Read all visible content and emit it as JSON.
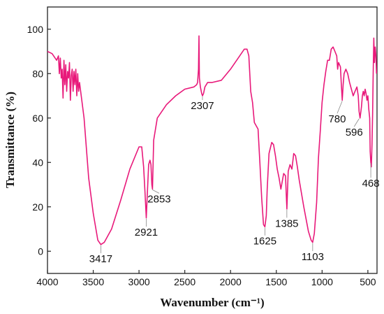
{
  "chart_data": {
    "type": "line",
    "title": "",
    "xlabel": "Wavenumber (cm⁻¹)",
    "ylabel": "Transmittance (%)",
    "xlim": [
      4000,
      400
    ],
    "ylim": [
      -10,
      110
    ],
    "x_reversed": true,
    "grid": false,
    "x_ticks": [
      4000,
      3500,
      3000,
      2500,
      2000,
      1500,
      1000,
      500
    ],
    "y_ticks": [
      0,
      20,
      40,
      60,
      80,
      100
    ],
    "series": [
      {
        "color": "#e8197a",
        "x": [
          4000,
          3950,
          3900,
          3880,
          3870,
          3860,
          3850,
          3840,
          3830,
          3820,
          3810,
          3800,
          3790,
          3780,
          3770,
          3760,
          3750,
          3740,
          3730,
          3720,
          3710,
          3700,
          3690,
          3680,
          3670,
          3660,
          3650,
          3600,
          3550,
          3500,
          3450,
          3417,
          3380,
          3300,
          3200,
          3100,
          3000,
          2970,
          2950,
          2935,
          2921,
          2910,
          2895,
          2880,
          2870,
          2860,
          2853,
          2840,
          2800,
          2700,
          2600,
          2500,
          2400,
          2370,
          2360,
          2350,
          2345,
          2340,
          2330,
          2315,
          2307,
          2295,
          2280,
          2250,
          2200,
          2100,
          2000,
          1900,
          1850,
          1820,
          1800,
          1780,
          1760,
          1740,
          1700,
          1680,
          1660,
          1640,
          1625,
          1610,
          1600,
          1580,
          1550,
          1530,
          1510,
          1490,
          1470,
          1450,
          1420,
          1400,
          1385,
          1370,
          1350,
          1330,
          1310,
          1290,
          1270,
          1250,
          1200,
          1150,
          1120,
          1103,
          1085,
          1060,
          1040,
          1020,
          1000,
          980,
          960,
          940,
          920,
          900,
          880,
          860,
          850,
          840,
          830,
          820,
          800,
          790,
          780,
          770,
          760,
          740,
          720,
          700,
          680,
          660,
          640,
          620,
          605,
          596,
          585,
          570,
          560,
          550,
          540,
          530,
          520,
          510,
          500,
          490,
          480,
          475,
          468,
          462,
          455,
          448,
          442,
          435,
          428,
          420,
          412,
          405
        ],
        "y": [
          90,
          89,
          86,
          88,
          80,
          87,
          78,
          82,
          69,
          86,
          75,
          84,
          72,
          81,
          78,
          85,
          68,
          79,
          82,
          72,
          81,
          75,
          82,
          70,
          80,
          72,
          76,
          60,
          33,
          17,
          5,
          3,
          4,
          10,
          23,
          37,
          47,
          47,
          38,
          27,
          15,
          25,
          39,
          41,
          39,
          30,
          28,
          50,
          60,
          66,
          70,
          73,
          74,
          75,
          76,
          82,
          97,
          78,
          74,
          71,
          70,
          71,
          74,
          76,
          76,
          77,
          82,
          88,
          91,
          91,
          88,
          72,
          67,
          58,
          55,
          40,
          24,
          12,
          11,
          16,
          28,
          44,
          49,
          48,
          43,
          37,
          33,
          28,
          35,
          34,
          19,
          36,
          39,
          37,
          44,
          43,
          38,
          32,
          20,
          9,
          5,
          4,
          8,
          22,
          42,
          54,
          67,
          75,
          81,
          86,
          86,
          91,
          92,
          90,
          89,
          88,
          82,
          85,
          83,
          75,
          68,
          75,
          80,
          82,
          80,
          76,
          73,
          70,
          72,
          74,
          70,
          63,
          60,
          65,
          70,
          72,
          70,
          73,
          71,
          68,
          70,
          64,
          60,
          45,
          40,
          38,
          48,
          62,
          80,
          96,
          85,
          92,
          88,
          80
        ]
      }
    ],
    "annotations": [
      {
        "text": "3417",
        "x": 3417,
        "y": 3
      },
      {
        "text": "2921",
        "x": 2921,
        "y": 15
      },
      {
        "text": "2853",
        "x": 2853,
        "y": 28
      },
      {
        "text": "2307",
        "x": 2307,
        "y": 70
      },
      {
        "text": "1625",
        "x": 1625,
        "y": 11
      },
      {
        "text": "1385",
        "x": 1385,
        "y": 19
      },
      {
        "text": "1103",
        "x": 1103,
        "y": 4
      },
      {
        "text": "780",
        "x": 780,
        "y": 68
      },
      {
        "text": "596",
        "x": 596,
        "y": 60
      },
      {
        "text": "468",
        "x": 468,
        "y": 40
      }
    ]
  }
}
